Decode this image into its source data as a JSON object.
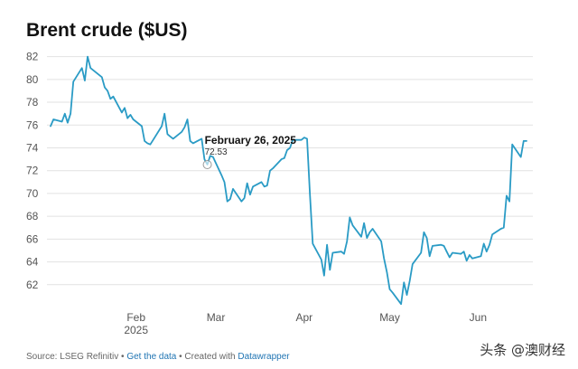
{
  "header": {
    "title": "Brent crude ($US)"
  },
  "chart_data": {
    "type": "line",
    "title": "Brent crude ($US)",
    "xlabel": "",
    "ylabel": "",
    "ylim": [
      60,
      83
    ],
    "xlim": [
      "2025-01-02",
      "2025-06-18"
    ],
    "y_ticks": [
      62,
      64,
      66,
      68,
      70,
      72,
      74,
      76,
      78,
      80,
      82
    ],
    "x_ticks": [
      {
        "date": "2025-02-01",
        "label": "Feb",
        "sublabel": "2025"
      },
      {
        "date": "2025-03-01",
        "label": "Mar",
        "sublabel": ""
      },
      {
        "date": "2025-04-01",
        "label": "Apr",
        "sublabel": ""
      },
      {
        "date": "2025-05-01",
        "label": "May",
        "sublabel": ""
      },
      {
        "date": "2025-06-01",
        "label": "Jun",
        "sublabel": ""
      }
    ],
    "grid": true,
    "series_color": "#2a9bc5",
    "annotation": {
      "date": "2025-02-26",
      "label": "February 26, 2025",
      "value": "72.53"
    },
    "series": [
      {
        "name": "",
        "x": [
          "2025-01-02",
          "2025-01-03",
          "2025-01-06",
          "2025-01-07",
          "2025-01-08",
          "2025-01-09",
          "2025-01-10",
          "2025-01-13",
          "2025-01-14",
          "2025-01-15",
          "2025-01-16",
          "2025-01-17",
          "2025-01-20",
          "2025-01-21",
          "2025-01-22",
          "2025-01-23",
          "2025-01-24",
          "2025-01-27",
          "2025-01-28",
          "2025-01-29",
          "2025-01-30",
          "2025-01-31",
          "2025-02-03",
          "2025-02-04",
          "2025-02-05",
          "2025-02-06",
          "2025-02-07",
          "2025-02-10",
          "2025-02-11",
          "2025-02-12",
          "2025-02-13",
          "2025-02-14",
          "2025-02-17",
          "2025-02-18",
          "2025-02-19",
          "2025-02-20",
          "2025-02-21",
          "2025-02-24",
          "2025-02-25",
          "2025-02-26",
          "2025-02-27",
          "2025-02-28",
          "2025-03-03",
          "2025-03-04",
          "2025-03-05",
          "2025-03-06",
          "2025-03-07",
          "2025-03-10",
          "2025-03-11",
          "2025-03-12",
          "2025-03-13",
          "2025-03-14",
          "2025-03-17",
          "2025-03-18",
          "2025-03-19",
          "2025-03-20",
          "2025-03-21",
          "2025-03-24",
          "2025-03-25",
          "2025-03-26",
          "2025-03-27",
          "2025-03-28",
          "2025-03-31",
          "2025-04-01",
          "2025-04-02",
          "2025-04-03",
          "2025-04-04",
          "2025-04-07",
          "2025-04-08",
          "2025-04-09",
          "2025-04-10",
          "2025-04-11",
          "2025-04-14",
          "2025-04-15",
          "2025-04-16",
          "2025-04-17",
          "2025-04-18",
          "2025-04-21",
          "2025-04-22",
          "2025-04-23",
          "2025-04-24",
          "2025-04-25",
          "2025-04-28",
          "2025-04-29",
          "2025-04-30",
          "2025-05-01",
          "2025-05-02",
          "2025-05-05",
          "2025-05-06",
          "2025-05-07",
          "2025-05-08",
          "2025-05-09",
          "2025-05-12",
          "2025-05-13",
          "2025-05-14",
          "2025-05-15",
          "2025-05-16",
          "2025-05-19",
          "2025-05-20",
          "2025-05-21",
          "2025-05-22",
          "2025-05-23",
          "2025-05-26",
          "2025-05-27",
          "2025-05-28",
          "2025-05-29",
          "2025-05-30",
          "2025-06-02",
          "2025-06-03",
          "2025-06-04",
          "2025-06-05",
          "2025-06-06",
          "2025-06-09",
          "2025-06-10",
          "2025-06-11",
          "2025-06-12",
          "2025-06-13",
          "2025-06-16",
          "2025-06-17",
          "2025-06-18"
        ],
        "values": [
          75.9,
          76.5,
          76.3,
          77.0,
          76.2,
          77.0,
          79.8,
          81.0,
          79.9,
          82.0,
          81.0,
          80.8,
          80.2,
          79.3,
          79.0,
          78.3,
          78.5,
          77.1,
          77.5,
          76.6,
          76.9,
          76.5,
          75.9,
          74.6,
          74.4,
          74.3,
          74.7,
          75.9,
          77.0,
          75.2,
          75.0,
          74.8,
          75.4,
          75.8,
          76.5,
          74.6,
          74.4,
          74.8,
          73.0,
          72.53,
          73.3,
          73.2,
          71.6,
          71.0,
          69.3,
          69.5,
          70.4,
          69.3,
          69.6,
          70.9,
          69.9,
          70.6,
          71.0,
          70.6,
          70.7,
          72.0,
          72.2,
          73.0,
          73.1,
          73.8,
          74.0,
          74.7,
          74.7,
          74.9,
          74.8,
          69.9,
          65.6,
          64.2,
          62.8,
          65.5,
          63.3,
          64.8,
          64.9,
          64.7,
          65.8,
          67.9,
          67.2,
          66.2,
          67.4,
          66.1,
          66.6,
          66.9,
          65.8,
          64.3,
          63.1,
          61.6,
          61.3,
          60.3,
          62.2,
          61.1,
          62.3,
          63.8,
          64.8,
          66.6,
          66.1,
          64.5,
          65.4,
          65.5,
          65.4,
          64.9,
          64.4,
          64.8,
          64.7,
          64.9,
          64.1,
          64.6,
          64.3,
          64.5,
          65.6,
          64.9,
          65.5,
          66.4,
          66.9,
          67.0,
          69.8,
          69.3,
          74.3,
          73.2,
          74.6,
          74.6
        ]
      }
    ]
  },
  "footer": {
    "source": "Source: LSEG Refinitiv",
    "sep1": " • ",
    "get_data": "Get the data",
    "sep2": " • Created with ",
    "datawrapper": "Datawrapper"
  },
  "watermark": "头条 @澳财经"
}
